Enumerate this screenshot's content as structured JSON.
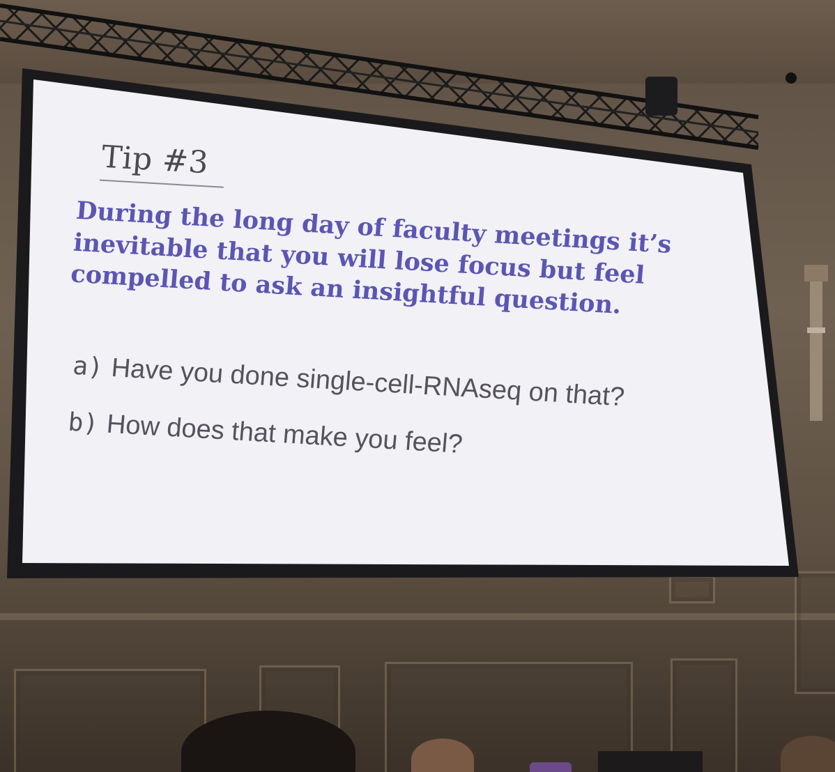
{
  "slide": {
    "title": "Tip #3",
    "body_lines": [
      "During the long day of faculty meetings it’s",
      "inevitable that you will lose focus but feel",
      "compelled to ask an insightful question."
    ],
    "options": [
      {
        "marker": "a)",
        "text": "Have you done single-cell-RNAseq on that?"
      },
      {
        "marker": "b)",
        "text": "How does that make you feel?"
      }
    ]
  },
  "colors": {
    "slide_background": "#f1f1f6",
    "title_text": "#4b4a4f",
    "body_text": "#5b56b3",
    "option_text": "#56525c",
    "screen_border": "#1a1a1c",
    "wall": "#6f6152",
    "truss": "#141414"
  }
}
